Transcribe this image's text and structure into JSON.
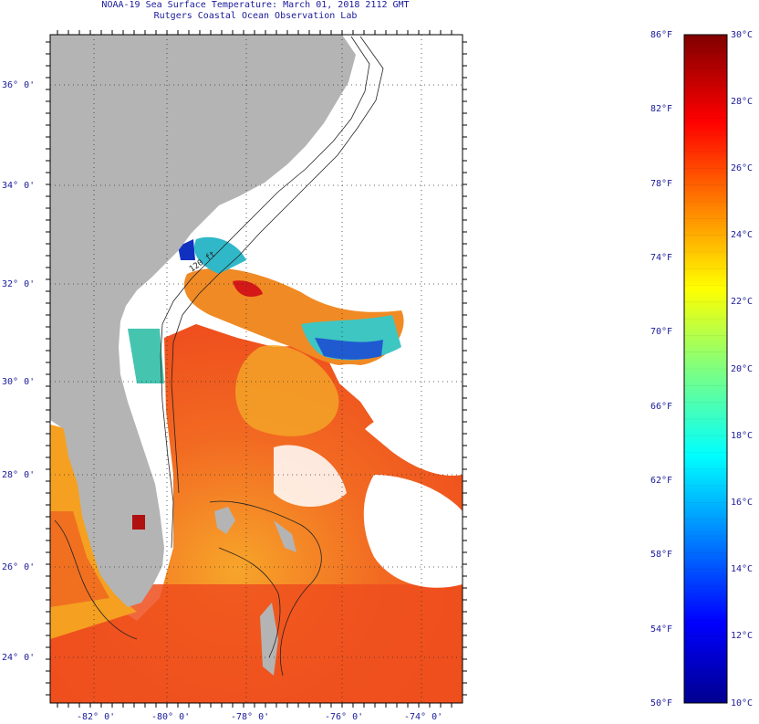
{
  "header": {
    "title_line1": "NOAA-19 Sea Surface Temperature:  March 01, 2018 2112 GMT",
    "title_line2": "Rutgers Coastal Ocean Observation Lab"
  },
  "map": {
    "lat_labels": [
      "36° 0'",
      "34° 0'",
      "32° 0'",
      "30° 0'",
      "28° 0'",
      "26° 0'",
      "24° 0'"
    ],
    "lon_labels": [
      "-82° 0'",
      "-80° 0'",
      "-78° 0'",
      "-76° 0'",
      "-74° 0'"
    ],
    "isobath_label": "120 ft",
    "colors": {
      "land": "#b4b4b4",
      "cloud": "#ffffff",
      "warm_sst": "#f2501e",
      "mid_sst": "#f5a020",
      "cool_sst": "#30c8c8",
      "cold_sst": "#1030c0"
    }
  },
  "colorbar": {
    "fahrenheit_labels": [
      "86°F",
      "82°F",
      "78°F",
      "74°F",
      "70°F",
      "66°F",
      "62°F",
      "58°F",
      "54°F",
      "50°F"
    ],
    "celsius_labels": [
      "30°C",
      "28°C",
      "26°C",
      "24°C",
      "22°C",
      "20°C",
      "18°C",
      "16°C",
      "14°C",
      "12°C",
      "10°C"
    ],
    "range_f": [
      50,
      86
    ],
    "range_c": [
      10,
      30
    ],
    "colormap": "jet"
  }
}
